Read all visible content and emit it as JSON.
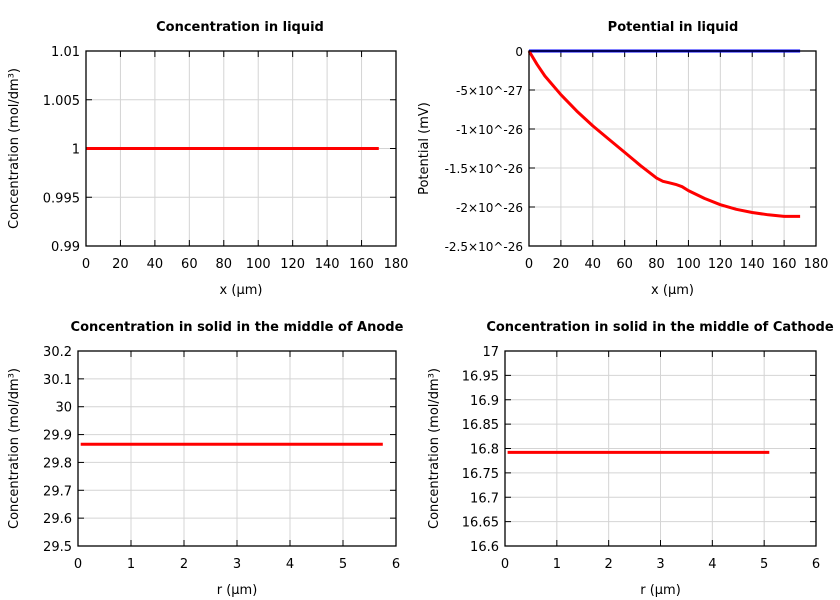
{
  "chart_data": [
    {
      "type": "line",
      "title": "Concentration in liquid",
      "xlabel": "x (µm)",
      "ylabel": "Concentration (mol/dm³)",
      "xlim": [
        0,
        180
      ],
      "ylim": [
        0.99,
        1.01
      ],
      "xticks": [
        0,
        20,
        40,
        60,
        80,
        100,
        120,
        140,
        160,
        180
      ],
      "xtick_labels": [
        "0",
        "20",
        "40",
        "60",
        "80",
        "100",
        "120",
        "140",
        "160",
        "180"
      ],
      "yticks": [
        0.99,
        0.995,
        1,
        1.005,
        1.01
      ],
      "ytick_labels": [
        "0.99",
        "0.995",
        "1",
        "1.005",
        "1.01"
      ],
      "grid": true,
      "series": [
        {
          "color": "#ff0000",
          "x": [
            0,
            170
          ],
          "y": [
            1,
            1
          ]
        }
      ]
    },
    {
      "type": "line",
      "title": "Potential in liquid",
      "xlabel": "x (µm)",
      "ylabel": "Potential (mV)",
      "xlim": [
        0,
        180
      ],
      "ylim": [
        -2.5e-26,
        0
      ],
      "xticks": [
        0,
        20,
        40,
        60,
        80,
        100,
        120,
        140,
        160,
        180
      ],
      "xtick_labels": [
        "0",
        "20",
        "40",
        "60",
        "80",
        "100",
        "120",
        "140",
        "160",
        "180"
      ],
      "yticks": [
        -2.5e-26,
        -2e-26,
        -1.5e-26,
        -1e-26,
        -5e-27,
        0
      ],
      "ytick_labels": [
        "-2.5×10^-26",
        "-2×10^-26",
        "-1.5×10^-26",
        "-1×10^-26",
        "-5×10^-27",
        "0"
      ],
      "grid": true,
      "series": [
        {
          "color": "#0000ff",
          "x": [
            0,
            170
          ],
          "y": [
            0,
            0
          ]
        },
        {
          "color": "#ff0000",
          "x": [
            0,
            5,
            10,
            20,
            30,
            40,
            50,
            60,
            70,
            80,
            84,
            88,
            92,
            96,
            100,
            110,
            120,
            130,
            140,
            150,
            160,
            170
          ],
          "y": [
            0,
            -1.7e-27,
            -3.2e-27,
            -5.6e-27,
            -7.7e-27,
            -9.6e-27,
            -1.13e-26,
            -1.3e-26,
            -1.47e-26,
            -1.63e-26,
            -1.67e-26,
            -1.69e-26,
            -1.71e-26,
            -1.74e-26,
            -1.79e-26,
            -1.89e-26,
            -1.97e-26,
            -2.03e-26,
            -2.07e-26,
            -2.1e-26,
            -2.12e-26,
            -2.12e-26
          ]
        }
      ]
    },
    {
      "type": "line",
      "title": "Concentration in solid in the middle of Anode",
      "xlabel": "r (µm)",
      "ylabel": "Concentration (mol/dm³)",
      "xlim": [
        0,
        6
      ],
      "ylim": [
        29.5,
        30.2
      ],
      "xticks": [
        0,
        1,
        2,
        3,
        4,
        5,
        6
      ],
      "xtick_labels": [
        "0",
        "1",
        "2",
        "3",
        "4",
        "5",
        "6"
      ],
      "yticks": [
        29.5,
        29.6,
        29.7,
        29.8,
        29.9,
        30,
        30.1,
        30.2
      ],
      "ytick_labels": [
        "29.5",
        "29.6",
        "29.7",
        "29.8",
        "29.9",
        "30",
        "30.1",
        "30.2"
      ],
      "grid": true,
      "series": [
        {
          "color": "#ff0000",
          "x": [
            0.05,
            5.75
          ],
          "y": [
            29.865,
            29.865
          ]
        }
      ]
    },
    {
      "type": "line",
      "title": "Concentration in solid in the middle of Cathode",
      "xlabel": "r (µm)",
      "ylabel": "Concentration (mol/dm³)",
      "xlim": [
        0,
        6
      ],
      "ylim": [
        16.6,
        17
      ],
      "xticks": [
        0,
        1,
        2,
        3,
        4,
        5,
        6
      ],
      "xtick_labels": [
        "0",
        "1",
        "2",
        "3",
        "4",
        "5",
        "6"
      ],
      "yticks": [
        16.6,
        16.65,
        16.7,
        16.75,
        16.8,
        16.85,
        16.9,
        16.95,
        17
      ],
      "ytick_labels": [
        "16.6",
        "16.65",
        "16.7",
        "16.75",
        "16.8",
        "16.85",
        "16.9",
        "16.95",
        "17"
      ],
      "grid": true,
      "series": [
        {
          "color": "#ff0000",
          "x": [
            0.05,
            5.1
          ],
          "y": [
            16.792,
            16.792
          ]
        }
      ]
    }
  ]
}
